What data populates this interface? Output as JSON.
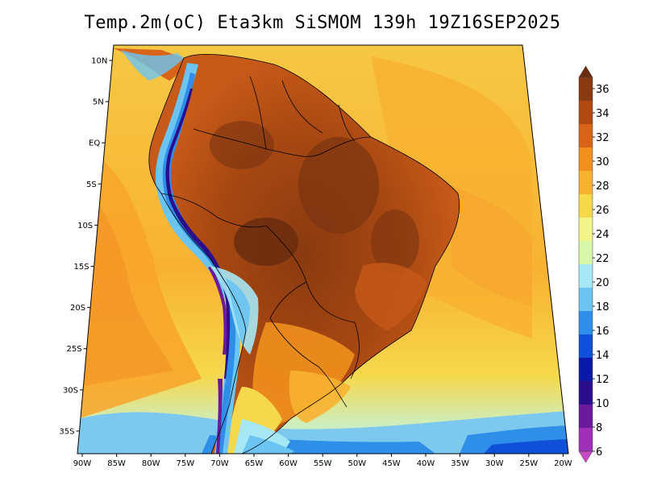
{
  "title": "Temp.2m(oC) Eta3km SiSMOM 139h 19Z16SEP2025",
  "map": {
    "variable": "2 m temperature",
    "units": "oC",
    "region": "South America",
    "lat_labels": [
      "10N",
      "5N",
      "EQ",
      "5S",
      "10S",
      "15S",
      "20S",
      "25S",
      "30S",
      "35S"
    ],
    "lon_labels": [
      "90W",
      "85W",
      "80W",
      "75W",
      "70W",
      "65W",
      "60W",
      "55W",
      "50W",
      "45W",
      "40W",
      "35W",
      "30W",
      "25W",
      "20W"
    ]
  },
  "colorbar": {
    "labels": [
      "36",
      "34",
      "32",
      "30",
      "28",
      "26",
      "24",
      "22",
      "20",
      "18",
      "16",
      "14",
      "12",
      "10",
      "8",
      "6"
    ],
    "colors": [
      "#6b2d0f",
      "#8a3a10",
      "#b04a10",
      "#d8641a",
      "#f0901e",
      "#f8b232",
      "#f6d84c",
      "#f2f58a",
      "#d9f7a8",
      "#a6e8f5",
      "#6cc4f2",
      "#2e8ee8",
      "#1050d8",
      "#0a1aa8",
      "#2a0e8c",
      "#6a1a9a",
      "#a030b8",
      "#c848c8"
    ]
  }
}
